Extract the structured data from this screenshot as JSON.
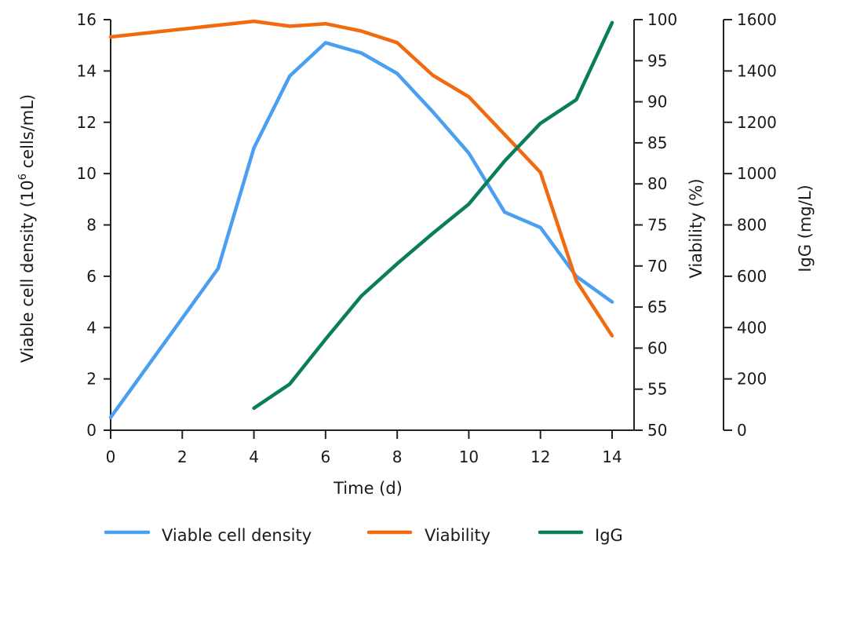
{
  "chart_data": {
    "type": "line",
    "title": "",
    "xlabel": "Time (d)",
    "x_ticks": [
      "0",
      "2",
      "4",
      "6",
      "8",
      "10",
      "12",
      "14"
    ],
    "xlim": [
      0,
      14
    ],
    "grid": false,
    "legend_position": "bottom",
    "axes": {
      "left": {
        "label": "Viable cell density (10⁶ cells/mL)",
        "label_main": "Viable cell density (10",
        "label_sup": "6",
        "label_end": " cells/mL)",
        "ylim": [
          0,
          16
        ],
        "ticks": [
          "0",
          "2",
          "4",
          "6",
          "8",
          "10",
          "12",
          "14",
          "16"
        ]
      },
      "right1": {
        "label": "Viability (%)",
        "ylim": [
          50,
          100
        ],
        "ticks": [
          "50",
          "55",
          "60",
          "65",
          "70",
          "75",
          "80",
          "85",
          "90",
          "95",
          "100"
        ]
      },
      "right2": {
        "label": "IgG (mg/L)",
        "ylim": [
          0,
          1600
        ],
        "ticks": [
          "0",
          "200",
          "400",
          "600",
          "800",
          "1000",
          "1200",
          "1400",
          "1600"
        ]
      }
    },
    "series": [
      {
        "name": "Viable cell density",
        "axis": "left",
        "color": "#4a9ff0",
        "x": [
          0,
          3,
          4,
          5,
          6,
          7,
          8,
          9,
          10,
          11,
          12,
          13,
          14
        ],
        "values": [
          0.5,
          6.3,
          11.0,
          13.8,
          15.1,
          14.7,
          13.9,
          12.4,
          10.8,
          8.5,
          7.9,
          6.0,
          5.0
        ]
      },
      {
        "name": "Viability",
        "axis": "right1",
        "color": "#f26a10",
        "x": [
          0,
          4,
          5,
          6,
          7,
          8,
          9,
          10,
          11,
          12,
          13,
          14
        ],
        "values": [
          97.9,
          99.8,
          99.2,
          99.5,
          98.6,
          97.2,
          93.2,
          90.6,
          86.0,
          81.4,
          68.2,
          61.5
        ]
      },
      {
        "name": "IgG",
        "axis": "right2",
        "color": "#0a7d5c",
        "x": [
          4,
          5,
          6,
          7,
          8,
          9,
          10,
          11,
          12,
          13,
          14
        ],
        "values": [
          86,
          180,
          355,
          523,
          649,
          768,
          881,
          1049,
          1196,
          1288,
          1588
        ]
      }
    ]
  }
}
